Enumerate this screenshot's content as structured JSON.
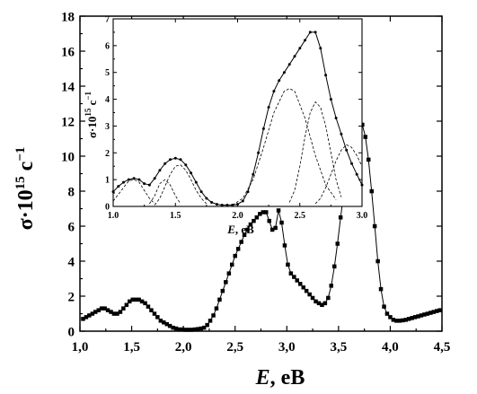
{
  "chart_data": [
    {
      "type": "line",
      "role": "main",
      "xlabel": "E, eB",
      "ylabel": "σ·10¹⁵ c⁻¹",
      "xlim": [
        1.0,
        4.5
      ],
      "ylim": [
        0,
        18
      ],
      "xticks": [
        "1,0",
        "1,5",
        "2,0",
        "2,5",
        "3,0",
        "3,5",
        "4,0",
        "4,5"
      ],
      "yticks": [
        "0",
        "2",
        "4",
        "6",
        "8",
        "10",
        "12",
        "14",
        "16",
        "18"
      ],
      "grid": false,
      "marker": "square",
      "series": [
        {
          "x": [
            1.03,
            1.06,
            1.09,
            1.12,
            1.15,
            1.18,
            1.21,
            1.24,
            1.27,
            1.3,
            1.33,
            1.36,
            1.39,
            1.42,
            1.45,
            1.48,
            1.51,
            1.54,
            1.57,
            1.6,
            1.63,
            1.66,
            1.69,
            1.72,
            1.75,
            1.78,
            1.81,
            1.84,
            1.87,
            1.9,
            1.93,
            1.96,
            1.99,
            2.02,
            2.05,
            2.08,
            2.11,
            2.14,
            2.17,
            2.2,
            2.23,
            2.26,
            2.29,
            2.32,
            2.35,
            2.38,
            2.41,
            2.44,
            2.47,
            2.5,
            2.53,
            2.56,
            2.59,
            2.62,
            2.65,
            2.68,
            2.71,
            2.74,
            2.77,
            2.8,
            2.83,
            2.86,
            2.89,
            2.92,
            2.95,
            2.98,
            3.01,
            3.04,
            3.07,
            3.1,
            3.13,
            3.16,
            3.19,
            3.22,
            3.25,
            3.28,
            3.31,
            3.34,
            3.37,
            3.4,
            3.43,
            3.46,
            3.49,
            3.52,
            3.55,
            3.58,
            3.61,
            3.64,
            3.67,
            3.7,
            3.73,
            3.76,
            3.79,
            3.82,
            3.85,
            3.88,
            3.91,
            3.94,
            3.97,
            4.0,
            4.03,
            4.06,
            4.09,
            4.12,
            4.15,
            4.18,
            4.21,
            4.24,
            4.27,
            4.3,
            4.33,
            4.36,
            4.39,
            4.42,
            4.45,
            4.48
          ],
          "y": [
            0.7,
            0.8,
            0.9,
            1.0,
            1.1,
            1.2,
            1.3,
            1.3,
            1.2,
            1.1,
            1.0,
            1.0,
            1.1,
            1.3,
            1.5,
            1.7,
            1.8,
            1.8,
            1.8,
            1.7,
            1.6,
            1.4,
            1.2,
            1.0,
            0.8,
            0.6,
            0.5,
            0.4,
            0.3,
            0.2,
            0.15,
            0.1,
            0.1,
            0.08,
            0.08,
            0.08,
            0.1,
            0.12,
            0.15,
            0.2,
            0.35,
            0.6,
            0.9,
            1.3,
            1.8,
            2.3,
            2.8,
            3.3,
            3.8,
            4.3,
            4.7,
            5.1,
            5.5,
            5.8,
            6.1,
            6.3,
            6.5,
            6.7,
            6.8,
            6.8,
            6.3,
            5.8,
            5.9,
            6.9,
            6.2,
            4.9,
            3.8,
            3.3,
            3.1,
            2.9,
            2.7,
            2.5,
            2.3,
            2.1,
            1.9,
            1.7,
            1.6,
            1.5,
            1.6,
            1.9,
            2.6,
            3.7,
            5.0,
            6.5,
            7.9,
            9.2,
            10.3,
            11.2,
            11.7,
            11.9,
            11.8,
            11.1,
            9.8,
            8.0,
            6.0,
            4.0,
            2.4,
            1.4,
            1.0,
            0.8,
            0.65,
            0.6,
            0.6,
            0.62,
            0.65,
            0.7,
            0.75,
            0.8,
            0.85,
            0.9,
            0.95,
            1.0,
            1.05,
            1.1,
            1.15,
            1.2
          ]
        }
      ]
    },
    {
      "type": "line",
      "role": "inset",
      "xlabel": "E, eB",
      "ylabel": "σ·10¹⁵ c⁻¹",
      "xlim": [
        1.0,
        3.4
      ],
      "ylim": [
        0,
        7
      ],
      "xticks": [
        "1.0",
        "1.5",
        "2.0",
        "2.5",
        "3.0"
      ],
      "yticks": [
        "0",
        "1",
        "2",
        "3",
        "4",
        "5",
        "6",
        "7"
      ],
      "grid": false,
      "series": [
        {
          "style": "solid-with-points",
          "x": [
            1.0,
            1.05,
            1.1,
            1.15,
            1.2,
            1.25,
            1.3,
            1.35,
            1.4,
            1.45,
            1.5,
            1.55,
            1.6,
            1.65,
            1.7,
            1.75,
            1.8,
            1.85,
            1.9,
            1.95,
            2.0,
            2.05,
            2.1,
            2.15,
            2.2,
            2.25,
            2.3,
            2.35,
            2.4,
            2.45,
            2.5,
            2.55,
            2.6,
            2.65,
            2.7,
            2.75,
            2.8,
            2.85,
            2.9,
            2.95,
            3.0,
            3.05,
            3.1,
            3.15,
            3.2,
            3.25,
            3.3,
            3.35,
            3.4
          ],
          "y": [
            0.55,
            0.75,
            0.9,
            1.0,
            1.05,
            1.0,
            0.85,
            0.8,
            1.05,
            1.35,
            1.6,
            1.75,
            1.8,
            1.75,
            1.55,
            1.25,
            0.9,
            0.55,
            0.3,
            0.15,
            0.08,
            0.05,
            0.05,
            0.05,
            0.08,
            0.2,
            0.55,
            1.2,
            2.0,
            2.9,
            3.7,
            4.3,
            4.7,
            5.0,
            5.3,
            5.6,
            5.9,
            6.2,
            6.5,
            6.5,
            5.9,
            4.9,
            4.0,
            3.3,
            2.7,
            2.1,
            1.6,
            1.2,
            0.8
          ]
        },
        {
          "style": "dashed",
          "x": [
            1.0,
            1.1,
            1.15,
            1.2,
            1.25,
            1.3,
            1.35,
            1.4
          ],
          "y": [
            0.2,
            0.7,
            0.95,
            1.0,
            0.9,
            0.6,
            0.3,
            0.1
          ]
        },
        {
          "style": "dashed",
          "x": [
            1.35,
            1.4,
            1.45,
            1.5,
            1.55,
            1.6,
            1.65
          ],
          "y": [
            0.1,
            0.4,
            0.85,
            1.0,
            0.8,
            0.4,
            0.1
          ]
        },
        {
          "style": "dashed",
          "x": [
            1.4,
            1.45,
            1.5,
            1.55,
            1.6,
            1.65,
            1.7,
            1.75,
            1.8,
            1.85,
            1.9
          ],
          "y": [
            0.05,
            0.3,
            0.75,
            1.2,
            1.5,
            1.55,
            1.35,
            1.0,
            0.6,
            0.3,
            0.1
          ]
        },
        {
          "style": "dashed",
          "x": [
            2.15,
            2.25,
            2.35,
            2.45,
            2.55,
            2.65,
            2.7,
            2.75,
            2.85,
            2.95,
            3.05,
            3.15
          ],
          "y": [
            0.05,
            0.3,
            1.0,
            2.2,
            3.5,
            4.3,
            4.4,
            4.3,
            3.3,
            1.9,
            0.8,
            0.25
          ]
        },
        {
          "style": "dashed",
          "x": [
            2.7,
            2.75,
            2.8,
            2.85,
            2.9,
            2.95,
            3.0,
            3.05,
            3.1,
            3.15,
            3.2
          ],
          "y": [
            0.15,
            0.6,
            1.5,
            2.6,
            3.5,
            3.9,
            3.7,
            3.0,
            2.0,
            1.0,
            0.35
          ]
        },
        {
          "style": "dashed",
          "x": [
            2.95,
            3.0,
            3.05,
            3.1,
            3.15,
            3.2,
            3.25,
            3.3,
            3.35,
            3.4
          ],
          "y": [
            0.1,
            0.3,
            0.7,
            1.2,
            1.7,
            2.1,
            2.3,
            2.2,
            1.9,
            1.5
          ]
        }
      ]
    }
  ]
}
